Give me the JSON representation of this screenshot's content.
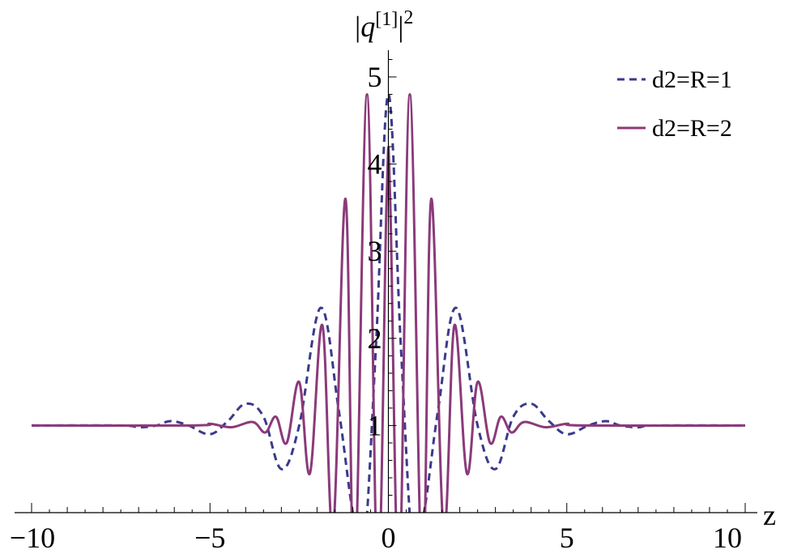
{
  "chart_data": {
    "type": "line",
    "title": "",
    "xlabel": "z",
    "ylabel_parts": {
      "base": "|q",
      "superscript_index": "[1]",
      "suffix": "|",
      "power": "2"
    },
    "xlim": [
      -10,
      10
    ],
    "ylim": [
      0,
      5.3
    ],
    "x_ticks": [
      {
        "value": -10,
        "label": "−10"
      },
      {
        "value": -5,
        "label": "−5"
      },
      {
        "value": 0,
        "label": "0"
      },
      {
        "value": 5,
        "label": "5"
      },
      {
        "value": 10,
        "label": "10"
      }
    ],
    "y_ticks": [
      {
        "value": 1,
        "label": "1"
      },
      {
        "value": 2,
        "label": "2"
      },
      {
        "value": 3,
        "label": "3"
      },
      {
        "value": 4,
        "label": "4"
      },
      {
        "value": 5,
        "label": "5"
      }
    ],
    "legend_position": "top-right",
    "grid": false,
    "series": [
      {
        "name": "d2=R=1",
        "style": "dashed",
        "color": "#3a3a8c",
        "x": [
          -10,
          -7.5,
          -7,
          -6.5,
          -6.1,
          -5.6,
          -5,
          -4.5,
          -4,
          -3.5,
          -3,
          -2.5,
          -1.9,
          -1.4,
          -1,
          -0.7,
          -0.35,
          0,
          0.35,
          0.7,
          1,
          1.4,
          1.9,
          2.5,
          3,
          3.5,
          4,
          4.5,
          5,
          5.6,
          6.1,
          6.5,
          7,
          7.5,
          10
        ],
        "y": [
          1.0,
          1.0,
          0.98,
          1.0,
          1.05,
          1.0,
          0.9,
          1.05,
          1.25,
          1.1,
          0.5,
          1.0,
          2.35,
          1.2,
          0.0,
          -0.5,
          1.9,
          4.8,
          1.9,
          -0.5,
          0.0,
          1.2,
          2.35,
          1.0,
          0.5,
          1.1,
          1.25,
          1.05,
          0.9,
          1.0,
          1.05,
          1.0,
          0.98,
          1.0,
          1.0
        ]
      },
      {
        "name": "d2=R=2",
        "style": "solid",
        "color": "#8b3a7a",
        "x": [
          -10,
          -5.5,
          -5,
          -4.4,
          -3.8,
          -3.45,
          -3.15,
          -2.85,
          -2.5,
          -2.2,
          -1.85,
          -1.55,
          -1.2,
          -0.95,
          -0.6,
          -0.3,
          -0.05,
          0.05,
          0.3,
          0.6,
          0.95,
          1.2,
          1.55,
          1.85,
          2.2,
          2.5,
          2.85,
          3.15,
          3.45,
          3.8,
          4.4,
          5,
          5.5,
          10
        ],
        "y": [
          1.0,
          1.0,
          1.02,
          0.98,
          1.04,
          0.92,
          1.1,
          0.8,
          1.5,
          0.45,
          2.15,
          -0.2,
          3.6,
          -0.8,
          4.8,
          -0.8,
          3.6,
          3.6,
          -0.8,
          4.8,
          -0.8,
          3.6,
          -0.2,
          2.15,
          0.45,
          1.5,
          0.8,
          1.1,
          0.92,
          1.04,
          0.98,
          1.02,
          1.0,
          1.0
        ]
      }
    ]
  }
}
